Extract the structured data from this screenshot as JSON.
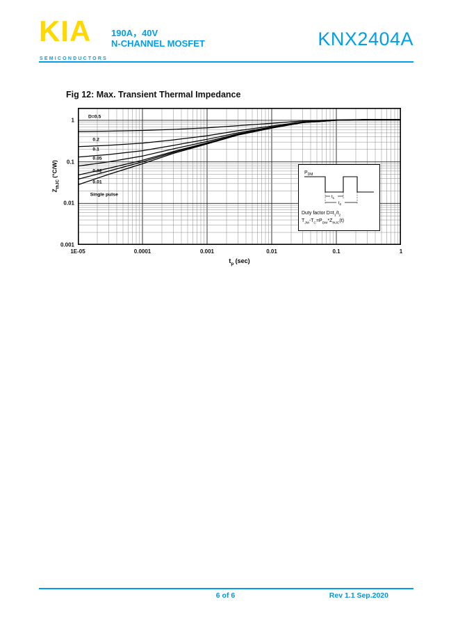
{
  "header": {
    "logo": "KIA",
    "logo_subtitle": "SEMICONDUCTORS",
    "rating": "190A，40V",
    "type": "N-CHANNEL MOSFET",
    "part_number": "KNX2404A"
  },
  "figure": {
    "title": "Fig 12: Max. Transient Thermal Impedance"
  },
  "chart_data": {
    "type": "line",
    "title": "Fig 12: Max. Transient Thermal Impedance",
    "x_scale": "log",
    "y_scale": "log",
    "grid": true,
    "xlabel": {
      "main": "t",
      "sub": "p",
      "unit": " (sec)"
    },
    "ylabel": {
      "main": "Z",
      "sub": "thJC",
      "unit": " (°C/W)"
    },
    "xlim": [
      1e-05,
      1
    ],
    "ylim": [
      0.001,
      2
    ],
    "x": [
      1e-05,
      3e-05,
      0.0001,
      0.0003,
      0.001,
      0.003,
      0.01,
      0.03,
      0.1,
      0.3,
      1
    ],
    "series": [
      {
        "name": "D=0.5",
        "values": [
          0.539,
          0.55,
          0.57,
          0.605,
          0.66,
          0.745,
          0.85,
          0.965,
          1.025,
          1.045,
          1.05
        ]
      },
      {
        "name": "D=0.2",
        "values": [
          0.232,
          0.25,
          0.282,
          0.338,
          0.426,
          0.562,
          0.73,
          0.914,
          1.01,
          1.042,
          1.05
        ]
      },
      {
        "name": "D=0.1",
        "values": [
          0.13,
          0.15,
          0.186,
          0.249,
          0.348,
          0.501,
          0.69,
          0.897,
          1.005,
          1.041,
          1.05
        ]
      },
      {
        "name": "D=0.05",
        "values": [
          0.079,
          0.1,
          0.138,
          0.205,
          0.309,
          0.47,
          0.67,
          0.888,
          1.003,
          1.041,
          1.05
        ]
      },
      {
        "name": "D=0.02",
        "values": [
          0.048,
          0.07,
          0.109,
          0.178,
          0.286,
          0.452,
          0.658,
          0.883,
          1.001,
          1.04,
          1.05
        ]
      },
      {
        "name": "D=0.01",
        "values": [
          0.038,
          0.06,
          0.1,
          0.169,
          0.278,
          0.446,
          0.654,
          0.882,
          1.001,
          1.04,
          1.05
        ]
      },
      {
        "name": "Single pulse",
        "values": [
          0.028,
          0.05,
          0.09,
          0.16,
          0.27,
          0.44,
          0.65,
          0.88,
          1.0,
          1.04,
          1.05
        ]
      }
    ],
    "xticks": {
      "values": [
        1e-05,
        0.0001,
        0.001,
        0.01,
        0.1,
        1
      ],
      "labels": [
        "1E-05",
        "0.0001",
        "0.001",
        "0.01",
        "0.1",
        "1"
      ]
    },
    "yticks": {
      "values": [
        1,
        0.1,
        0.01,
        0.001
      ],
      "labels": [
        "1",
        "0.1",
        "0.01",
        "0.001"
      ]
    },
    "annotations": [
      {
        "text": "D=0.5",
        "x": 1.45e-05,
        "y": 1.2
      },
      {
        "text": "0.2",
        "x": 1.7e-05,
        "y": 0.34
      },
      {
        "text": "0.1",
        "x": 1.7e-05,
        "y": 0.2
      },
      {
        "text": "0.05",
        "x": 1.7e-05,
        "y": 0.12
      },
      {
        "text": "0.02",
        "x": 1.7e-05,
        "y": 0.06
      },
      {
        "text": "0.01",
        "x": 1.7e-05,
        "y": 0.032
      },
      {
        "text": "Single pulse",
        "x": 1.55e-05,
        "y": 0.016
      }
    ],
    "legend_position": "none"
  },
  "inset": {
    "p_main": "P",
    "p_sub": "DM",
    "t1_main": "t",
    "t1_sub": "1",
    "t2_main": "t",
    "t2_sub": "2",
    "duty_a": "Duty factor D=t",
    "duty_a_sub": "1",
    "duty_b": "/t",
    "duty_b_sub": "2",
    "f_a": "T",
    "f_a_sub": "JM",
    "f_b": "-T",
    "f_b_sub": "C",
    "f_c": "=P",
    "f_c_sub": "DM",
    "f_d": "*Z",
    "f_d_sub": "thJC",
    "f_e": "(t)"
  },
  "footer": {
    "page": "6 of 6",
    "revision": "Rev 1.1 Sep.2020"
  },
  "colors": {
    "brand_yellow": "#ffd800",
    "brand_cyan": "#00a0e9",
    "footer_blue": "#0096dd",
    "curve_black": "#000000"
  }
}
